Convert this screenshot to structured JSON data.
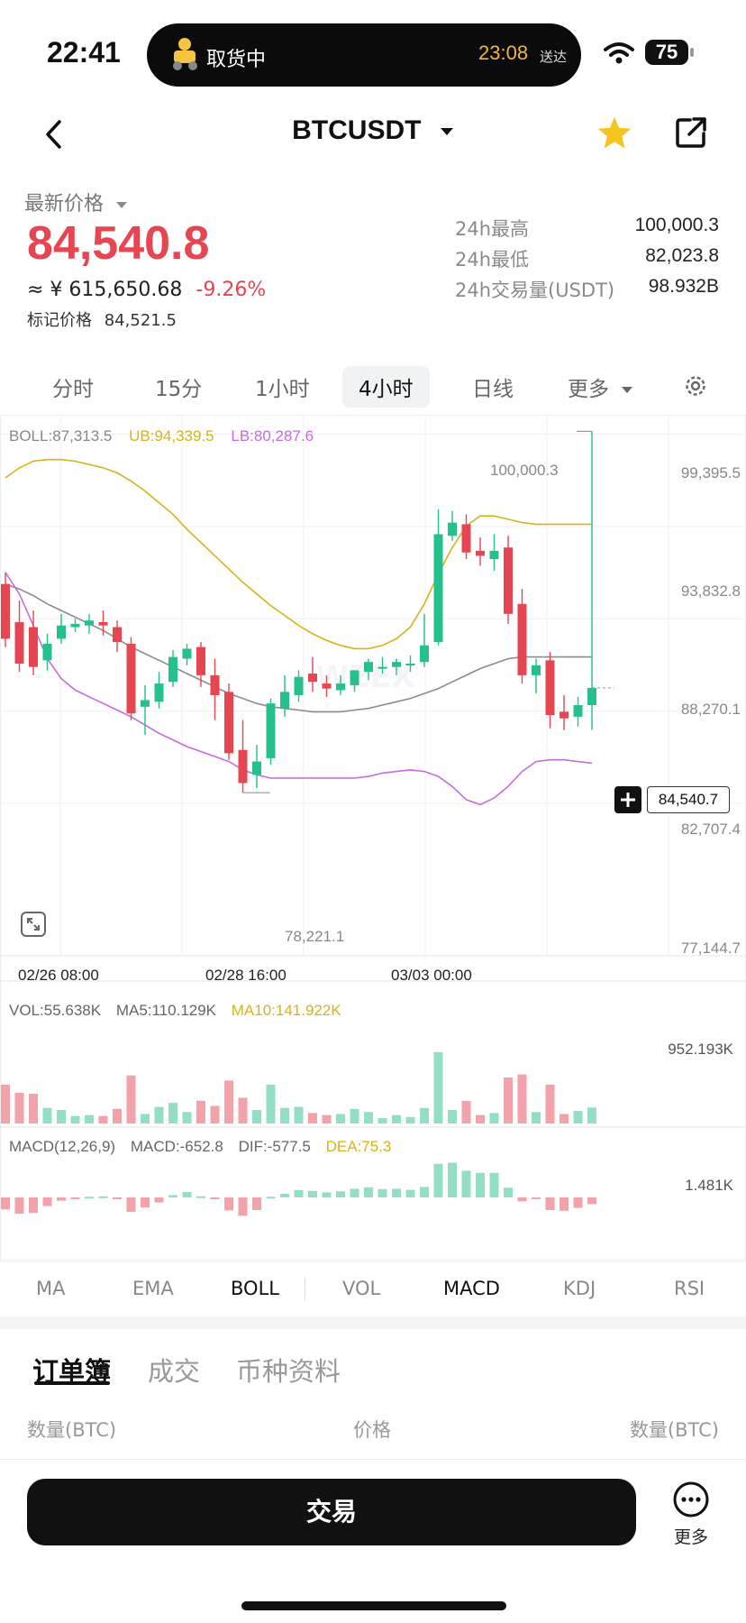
{
  "status": {
    "time": "22:41",
    "delivery_text": "取货中",
    "eta_time": "23:08",
    "eta_suffix": "送达",
    "battery": "75"
  },
  "nav": {
    "title": "BTCUSDT"
  },
  "price": {
    "label": "最新价格",
    "last": "84,540.8",
    "cny": "≈ ¥ 615,650.68",
    "change": "-9.26%",
    "mark_label": "标记价格",
    "mark_value": "84,521.5"
  },
  "stats": [
    {
      "label": "24h最高",
      "value": "100,000.3"
    },
    {
      "label": "24h最低",
      "value": "82,023.8"
    },
    {
      "label": "24h交易量(USDT)",
      "value": "98.932B"
    }
  ],
  "timeframes": [
    "分时",
    "15分",
    "1小时",
    "4小时",
    "日线",
    "更多"
  ],
  "active_timeframe": "4小时",
  "colors": {
    "up": "#25c08c",
    "down": "#e64552",
    "ub": "#d7b31a",
    "lb": "#c86ae0",
    "mid": "#8c8c8c",
    "accent": "#f7c31f"
  },
  "chart": {
    "boll_label": "BOLL:87,313.5",
    "ub_label": "UB:94,339.5",
    "lb_label": "LB:80,287.6",
    "y_labels": [
      "99,395.5",
      "93,832.8",
      "88,270.1",
      "82,707.4",
      "77,144.7"
    ],
    "high_marker": "100,000.3",
    "low_marker": "78,221.1",
    "current_price_tag": "84,540.7",
    "x_labels": [
      "02/26 08:00",
      "02/28 16:00",
      "03/03 00:00"
    ],
    "watermark": "WEEX",
    "vol_label": "VOL:55.638K",
    "vol_ma5": "MA5:110.129K",
    "vol_ma10": "MA10:141.922K",
    "vol_max": "952.193K",
    "macd_params": "MACD(12,26,9)",
    "macd_value": "MACD:-652.8",
    "dif_value": "DIF:-577.5",
    "dea_value": "DEA:75.3",
    "macd_max": "1.481K"
  },
  "chart_data": {
    "type": "candlestick",
    "y_axis_ticks": [
      77144.7,
      82707.4,
      88270.1,
      93832.8,
      99395.5
    ],
    "ylim": [
      76000,
      101000
    ],
    "x_ticks": [
      "02/26 08:00",
      "02/28 16:00",
      "03/03 00:00"
    ],
    "candles": [
      {
        "o": 90800,
        "h": 91500,
        "c": 87500,
        "l": 87000
      },
      {
        "o": 88500,
        "h": 89800,
        "c": 86000,
        "l": 85500
      },
      {
        "o": 88200,
        "h": 89200,
        "c": 85800,
        "l": 85300
      },
      {
        "o": 86200,
        "h": 87800,
        "c": 87200,
        "l": 85600
      },
      {
        "o": 87500,
        "h": 89000,
        "c": 88300,
        "l": 87200
      },
      {
        "o": 88200,
        "h": 88700,
        "c": 88400,
        "l": 87900
      },
      {
        "o": 88300,
        "h": 89000,
        "c": 88600,
        "l": 87800
      },
      {
        "o": 88500,
        "h": 89200,
        "c": 88300,
        "l": 87700
      },
      {
        "o": 88200,
        "h": 88600,
        "c": 87300,
        "l": 86700
      },
      {
        "o": 87200,
        "h": 87600,
        "c": 83000,
        "l": 82600
      },
      {
        "o": 83400,
        "h": 84700,
        "c": 83800,
        "l": 81700
      },
      {
        "o": 83700,
        "h": 85500,
        "c": 84800,
        "l": 83300
      },
      {
        "o": 84900,
        "h": 86800,
        "c": 86400,
        "l": 84600
      },
      {
        "o": 86300,
        "h": 87200,
        "c": 86900,
        "l": 85900
      },
      {
        "o": 87000,
        "h": 87300,
        "c": 85300,
        "l": 84600
      },
      {
        "o": 85300,
        "h": 86300,
        "c": 84100,
        "l": 82600
      },
      {
        "o": 84300,
        "h": 84800,
        "c": 80600,
        "l": 80200
      },
      {
        "o": 80800,
        "h": 82600,
        "c": 78800,
        "l": 78221
      },
      {
        "o": 79300,
        "h": 81100,
        "c": 80100,
        "l": 78500
      },
      {
        "o": 80300,
        "h": 83900,
        "c": 83600,
        "l": 79900
      },
      {
        "o": 83300,
        "h": 85300,
        "c": 84300,
        "l": 82800
      },
      {
        "o": 84100,
        "h": 85600,
        "c": 85200,
        "l": 83700
      },
      {
        "o": 85400,
        "h": 86400,
        "c": 84900,
        "l": 84300
      },
      {
        "o": 84800,
        "h": 85300,
        "c": 84500,
        "l": 84000
      },
      {
        "o": 84400,
        "h": 85300,
        "c": 84800,
        "l": 84100
      },
      {
        "o": 84700,
        "h": 85600,
        "c": 85600,
        "l": 84300
      },
      {
        "o": 85500,
        "h": 86300,
        "c": 86100,
        "l": 85000
      },
      {
        "o": 85800,
        "h": 86400,
        "c": 85800,
        "l": 85400
      },
      {
        "o": 85800,
        "h": 86300,
        "c": 86100,
        "l": 85300
      },
      {
        "o": 85900,
        "h": 86500,
        "c": 86000,
        "l": 85500
      },
      {
        "o": 86100,
        "h": 89000,
        "c": 87100,
        "l": 85800
      },
      {
        "o": 87300,
        "h": 95300,
        "c": 93800,
        "l": 87100
      },
      {
        "o": 93700,
        "h": 95200,
        "c": 94500,
        "l": 93400
      },
      {
        "o": 94400,
        "h": 95000,
        "c": 92700,
        "l": 92300
      },
      {
        "o": 92800,
        "h": 93600,
        "c": 92500,
        "l": 91900
      },
      {
        "o": 92300,
        "h": 93800,
        "c": 92800,
        "l": 91600
      },
      {
        "o": 93000,
        "h": 93700,
        "c": 89000,
        "l": 88400
      },
      {
        "o": 89600,
        "h": 90500,
        "c": 85300,
        "l": 84800
      },
      {
        "o": 85300,
        "h": 86300,
        "c": 85900,
        "l": 84200
      },
      {
        "o": 86200,
        "h": 86700,
        "c": 82900,
        "l": 82100
      },
      {
        "o": 83100,
        "h": 84100,
        "c": 82700,
        "l": 82000
      },
      {
        "o": 82800,
        "h": 84000,
        "c": 83500,
        "l": 82200
      },
      {
        "o": 83500,
        "h": 100000,
        "c": 84540,
        "l": 82000
      }
    ],
    "boll_mid": [
      90800,
      90500,
      90100,
      89600,
      89200,
      88800,
      88400,
      88000,
      87500,
      87000,
      86600,
      86200,
      85800,
      85400,
      85000,
      84600,
      84200,
      83900,
      83600,
      83400,
      83300,
      83200,
      83100,
      83100,
      83100,
      83200,
      83300,
      83500,
      83700,
      83900,
      84200,
      84500,
      84900,
      85300,
      85700,
      86000,
      86300,
      86400,
      86400,
      86400,
      86400,
      86400,
      86400
    ],
    "boll_ub": [
      97200,
      97800,
      98200,
      98300,
      98300,
      98200,
      98000,
      97800,
      97500,
      97000,
      96400,
      95700,
      95000,
      94100,
      93300,
      92500,
      91700,
      90900,
      90200,
      89500,
      88900,
      88300,
      87800,
      87400,
      87100,
      86900,
      86900,
      87100,
      87500,
      88200,
      89600,
      91400,
      93000,
      94300,
      94900,
      94900,
      94700,
      94500,
      94400,
      94400,
      94400,
      94400,
      94400
    ],
    "boll_lb": [
      91500,
      90200,
      88300,
      86300,
      85100,
      84400,
      84000,
      83600,
      83200,
      82800,
      82300,
      81800,
      81400,
      81000,
      80700,
      80400,
      80100,
      79600,
      79300,
      79100,
      79100,
      79100,
      79100,
      79100,
      79100,
      79100,
      79200,
      79400,
      79500,
      79600,
      79500,
      79200,
      78600,
      77800,
      77500,
      77900,
      78600,
      79500,
      80100,
      80200,
      80200,
      80100,
      80000
    ]
  },
  "indicator_tabs": [
    "MA",
    "EMA",
    "BOLL",
    "VOL",
    "MACD",
    "KDJ",
    "RSI"
  ],
  "active_main_indicator": "BOLL",
  "orderbook": {
    "tabs": [
      "订单簿",
      "成交",
      "币种资料"
    ],
    "active_tab": "订单簿",
    "col_left": "数量(BTC)",
    "col_mid": "价格",
    "col_right": "数量(BTC)"
  },
  "bottom": {
    "trade": "交易",
    "more": "更多"
  }
}
